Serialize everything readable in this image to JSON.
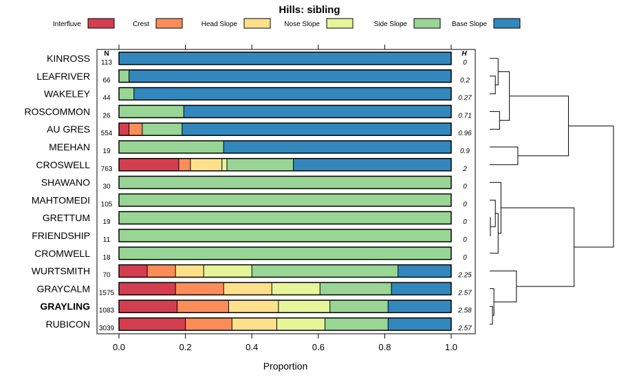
{
  "chart_data": {
    "type": "bar",
    "stacked": true,
    "orientation": "horizontal",
    "title": "Hills: sibling",
    "xlabel": "Proportion",
    "ylabel": "",
    "xlim": [
      0,
      1
    ],
    "x_ticks": [
      "0.0",
      "0.2",
      "0.4",
      "0.6",
      "0.8",
      "1.0"
    ],
    "n_header": "N",
    "h_header": "H",
    "highlight": "GRAYLING",
    "legend_position": "top",
    "colors": {
      "Interfluve": "#d53e4f",
      "Crest": "#fc8d59",
      "Head Slope": "#fee08b",
      "Nose Slope": "#e6f598",
      "Side Slope": "#99d594",
      "Base Slope": "#3288bd"
    },
    "legend": [
      "Interfluve",
      "Crest",
      "Head Slope",
      "Nose Slope",
      "Side Slope",
      "Base Slope"
    ],
    "categories": [
      "KINROSS",
      "LEAFRIVER",
      "WAKELEY",
      "ROSCOMMON",
      "AU GRES",
      "MEEHAN",
      "CROSWELL",
      "SHAWANO",
      "MAHTOMEDI",
      "GRETTUM",
      "FRIENDSHIP",
      "CROMWELL",
      "WURTSMITH",
      "GRAYCALM",
      "GRAYLING",
      "RUBICON"
    ],
    "n": [
      "113",
      "66",
      "44",
      "26",
      "554",
      "19",
      "763",
      "30",
      "105",
      "19",
      "11",
      "18",
      "70",
      "1575",
      "1083",
      "3039"
    ],
    "h": [
      "0",
      "0.2",
      "0.27",
      "0.71",
      "0.96",
      "0.9",
      "2",
      "0",
      "0",
      "0",
      "0",
      "0",
      "2.25",
      "2.57",
      "2.58",
      "2.57"
    ],
    "series": [
      {
        "name": "Interfluve",
        "values": [
          0,
          0,
          0,
          0,
          0.03,
          0,
          0.18,
          0,
          0,
          0,
          0,
          0,
          0.085,
          0.17,
          0.175,
          0.2
        ]
      },
      {
        "name": "Crest",
        "values": [
          0,
          0,
          0,
          0,
          0.04,
          0,
          0.035,
          0,
          0,
          0,
          0,
          0,
          0.085,
          0.145,
          0.155,
          0.14
        ]
      },
      {
        "name": "Head Slope",
        "values": [
          0,
          0,
          0,
          0,
          0,
          0,
          0.095,
          0,
          0,
          0,
          0,
          0,
          0.085,
          0.145,
          0.15,
          0.135
        ]
      },
      {
        "name": "Nose Slope",
        "values": [
          0,
          0,
          0,
          0,
          0,
          0,
          0.015,
          0,
          0,
          0,
          0,
          0,
          0.145,
          0.145,
          0.155,
          0.145
        ]
      },
      {
        "name": "Side Slope",
        "values": [
          0,
          0.03,
          0.045,
          0.195,
          0.12,
          0.315,
          0.2,
          1,
          1,
          1,
          1,
          1,
          0.44,
          0.215,
          0.175,
          0.19
        ]
      },
      {
        "name": "Base Slope",
        "values": [
          1,
          0.97,
          0.955,
          0.805,
          0.81,
          0.685,
          0.475,
          0,
          0,
          0,
          0,
          0,
          0.16,
          0.18,
          0.19,
          0.19
        ]
      }
    ],
    "dendrogram": {
      "leaf_order": [
        0,
        1,
        2,
        3,
        4,
        5,
        6,
        7,
        8,
        9,
        10,
        11,
        12,
        13,
        14,
        15
      ],
      "merges": [
        {
          "a": "L1",
          "b": "L2",
          "height": 0.04
        },
        {
          "a": "L0",
          "b": "M0",
          "height": 0.06
        },
        {
          "a": "L3",
          "b": "L4",
          "height": 0.07
        },
        {
          "a": "M1",
          "b": "M2",
          "height": 0.14
        },
        {
          "a": "L5",
          "b": "L6",
          "height": 0.2
        },
        {
          "a": "M3",
          "b": "M4",
          "height": 0.56
        },
        {
          "a": "L9",
          "b": "L10",
          "height": 0.005
        },
        {
          "a": "L8",
          "b": "M6",
          "height": 0.04
        },
        {
          "a": "M7",
          "b": "L11",
          "height": 0.06
        },
        {
          "a": "L7",
          "b": "M8",
          "height": 0.08
        },
        {
          "a": "L14",
          "b": "L15",
          "height": 0.02
        },
        {
          "a": "L13",
          "b": "M10",
          "height": 0.03
        },
        {
          "a": "L12",
          "b": "M11",
          "height": 0.19
        },
        {
          "a": "M9",
          "b": "M12",
          "height": 0.6
        },
        {
          "a": "M5",
          "b": "M13",
          "height": 0.88
        }
      ]
    }
  }
}
